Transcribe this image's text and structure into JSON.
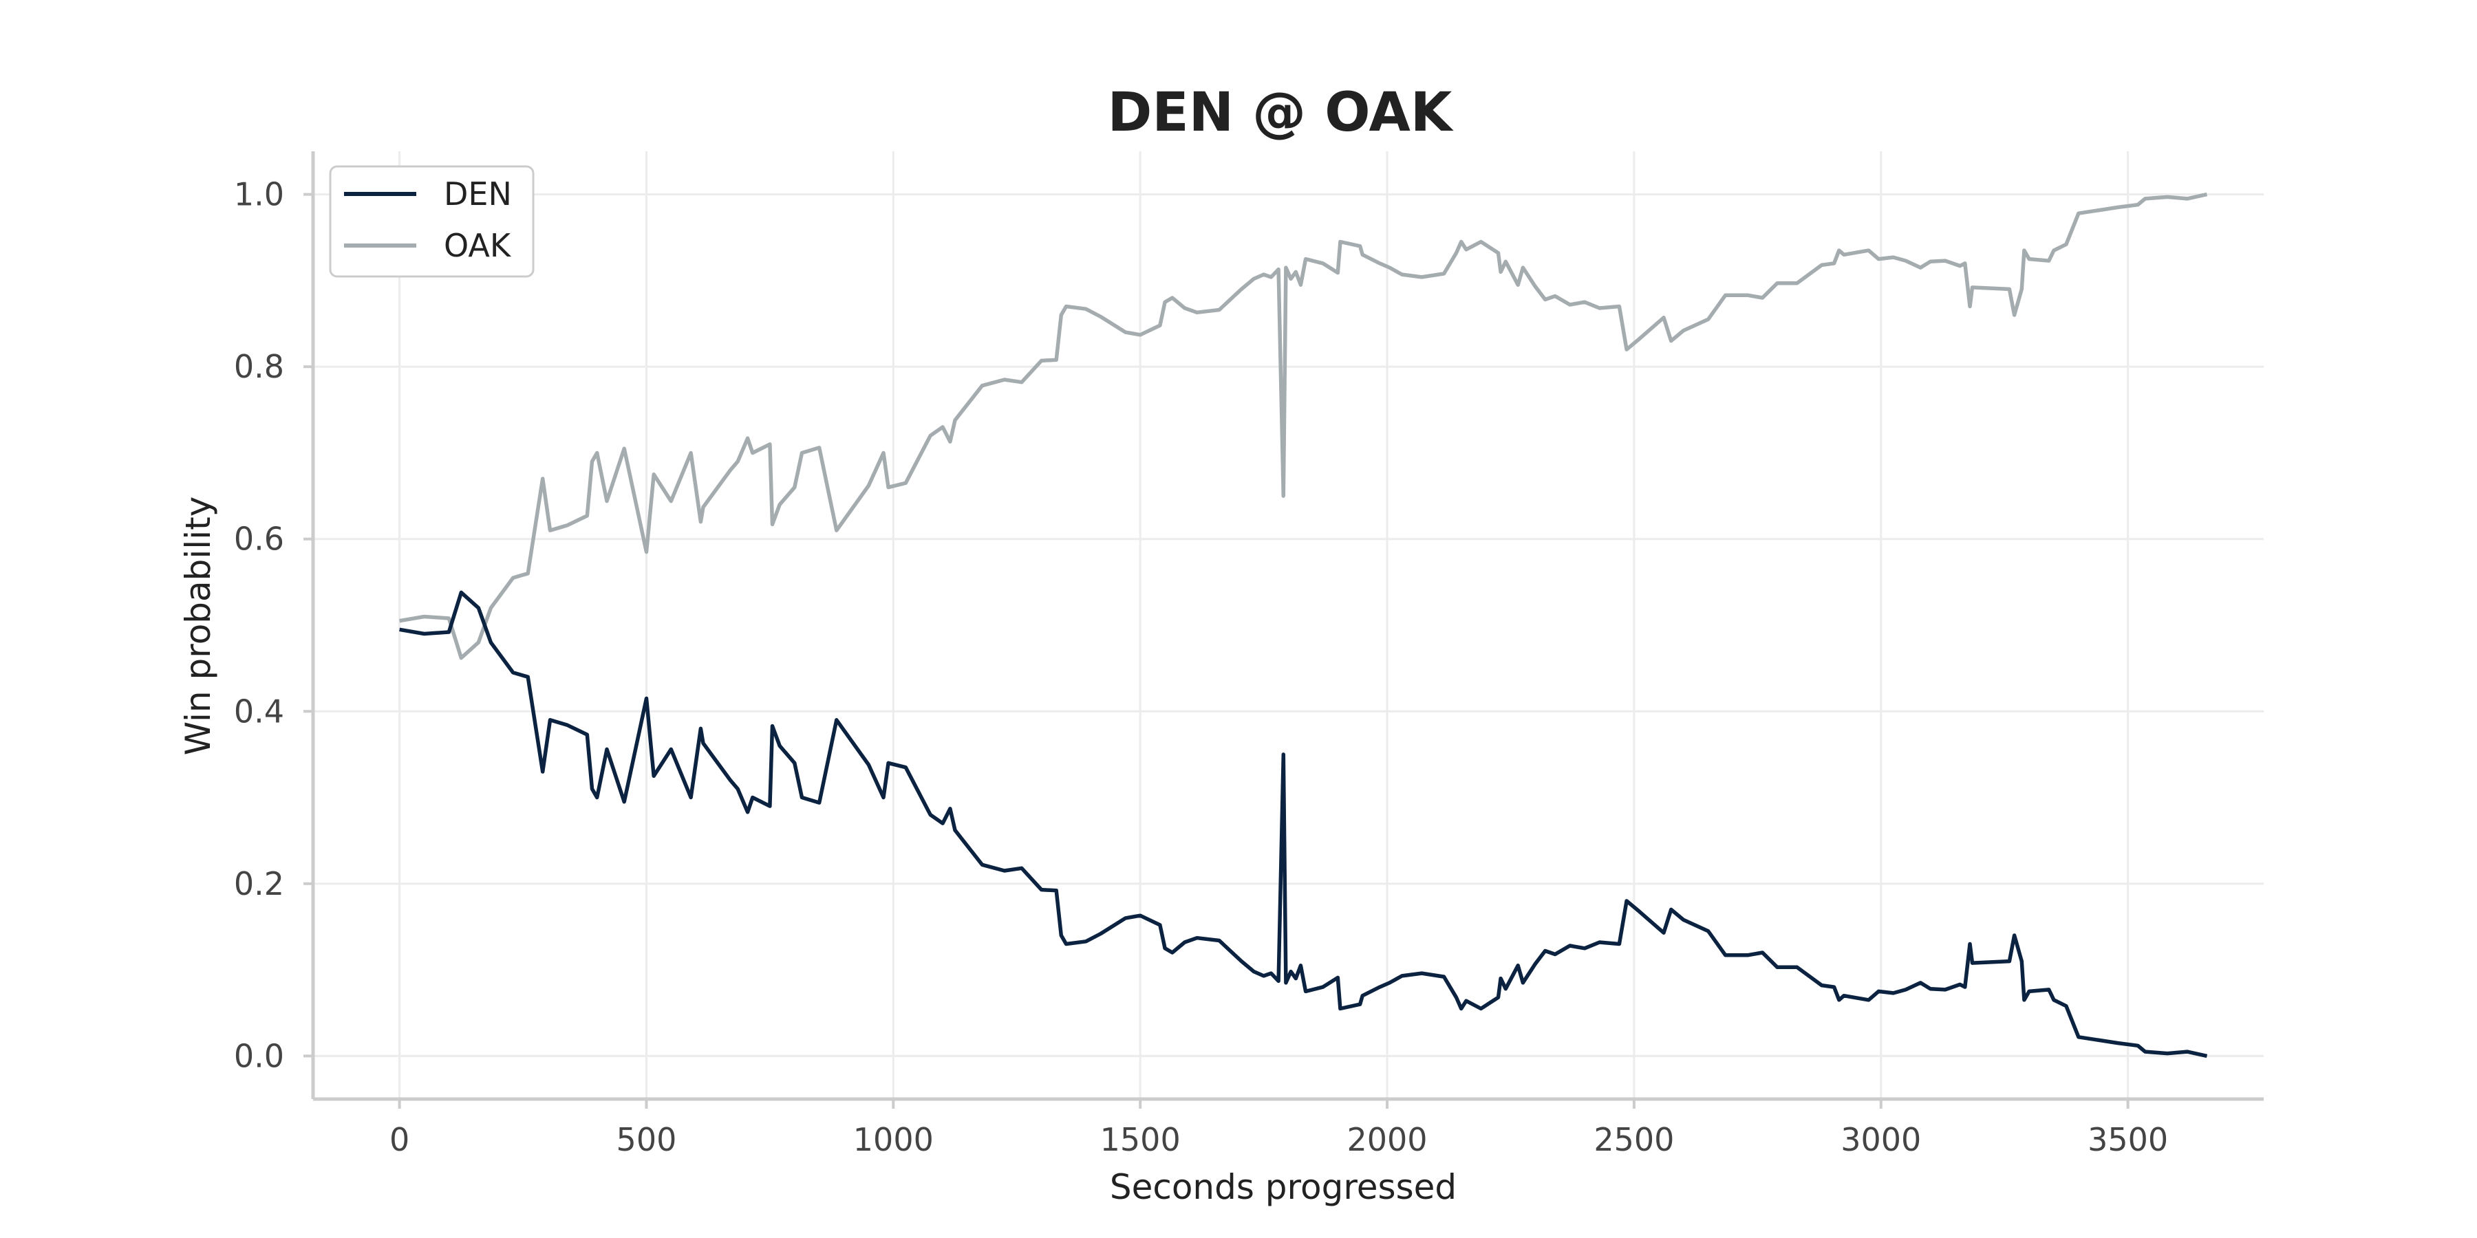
{
  "chart_data": {
    "type": "line",
    "title": "DEN @ OAK",
    "xlabel": "Seconds progressed",
    "ylabel": "Win probability",
    "xlim": [
      -175,
      3775
    ],
    "ylim": [
      -0.05,
      1.05
    ],
    "xticks": [
      0,
      500,
      1000,
      1500,
      2000,
      2500,
      3000,
      3500
    ],
    "yticks": [
      0.0,
      0.2,
      0.4,
      0.6,
      0.8,
      1.0
    ],
    "xtick_labels": [
      "0",
      "500",
      "1000",
      "1500",
      "2000",
      "2500",
      "3000",
      "3500"
    ],
    "ytick_labels": [
      "0.0",
      "0.2",
      "0.4",
      "0.6",
      "0.8",
      "1.0"
    ],
    "grid": true,
    "legend_position": "top-left",
    "colors": {
      "DEN": "#0b2341",
      "OAK": "#a5acaf"
    },
    "series": [
      {
        "name": "DEN",
        "color": "#0b2341",
        "points": [
          [
            0,
            0.495
          ],
          [
            50,
            0.49
          ],
          [
            100,
            0.492
          ],
          [
            125,
            0.538
          ],
          [
            160,
            0.52
          ],
          [
            185,
            0.48
          ],
          [
            230,
            0.445
          ],
          [
            260,
            0.44
          ],
          [
            290,
            0.33
          ],
          [
            305,
            0.39
          ],
          [
            340,
            0.384
          ],
          [
            380,
            0.373
          ],
          [
            390,
            0.31
          ],
          [
            400,
            0.3
          ],
          [
            420,
            0.356
          ],
          [
            455,
            0.295
          ],
          [
            500,
            0.415
          ],
          [
            515,
            0.325
          ],
          [
            550,
            0.356
          ],
          [
            590,
            0.3
          ],
          [
            610,
            0.38
          ],
          [
            615,
            0.363
          ],
          [
            670,
            0.32
          ],
          [
            685,
            0.31
          ],
          [
            705,
            0.283
          ],
          [
            715,
            0.3
          ],
          [
            750,
            0.29
          ],
          [
            755,
            0.383
          ],
          [
            770,
            0.36
          ],
          [
            800,
            0.34
          ],
          [
            815,
            0.3
          ],
          [
            850,
            0.294
          ],
          [
            885,
            0.39
          ],
          [
            950,
            0.338
          ],
          [
            980,
            0.3
          ],
          [
            990,
            0.34
          ],
          [
            1025,
            0.335
          ],
          [
            1075,
            0.28
          ],
          [
            1100,
            0.27
          ],
          [
            1115,
            0.287
          ],
          [
            1125,
            0.262
          ],
          [
            1180,
            0.222
          ],
          [
            1225,
            0.215
          ],
          [
            1260,
            0.218
          ],
          [
            1300,
            0.193
          ],
          [
            1330,
            0.192
          ],
          [
            1340,
            0.14
          ],
          [
            1350,
            0.13
          ],
          [
            1390,
            0.133
          ],
          [
            1420,
            0.142
          ],
          [
            1470,
            0.16
          ],
          [
            1500,
            0.163
          ],
          [
            1540,
            0.152
          ],
          [
            1550,
            0.125
          ],
          [
            1565,
            0.12
          ],
          [
            1590,
            0.132
          ],
          [
            1615,
            0.137
          ],
          [
            1660,
            0.134
          ],
          [
            1705,
            0.11
          ],
          [
            1730,
            0.098
          ],
          [
            1750,
            0.093
          ],
          [
            1765,
            0.096
          ],
          [
            1780,
            0.087
          ],
          [
            1790,
            0.35
          ],
          [
            1795,
            0.085
          ],
          [
            1805,
            0.098
          ],
          [
            1815,
            0.09
          ],
          [
            1825,
            0.105
          ],
          [
            1835,
            0.075
          ],
          [
            1870,
            0.08
          ],
          [
            1900,
            0.091
          ],
          [
            1905,
            0.055
          ],
          [
            1945,
            0.06
          ],
          [
            1950,
            0.07
          ],
          [
            1985,
            0.08
          ],
          [
            2005,
            0.085
          ],
          [
            2030,
            0.093
          ],
          [
            2070,
            0.096
          ],
          [
            2115,
            0.092
          ],
          [
            2140,
            0.068
          ],
          [
            2150,
            0.055
          ],
          [
            2160,
            0.064
          ],
          [
            2190,
            0.055
          ],
          [
            2225,
            0.068
          ],
          [
            2230,
            0.09
          ],
          [
            2240,
            0.078
          ],
          [
            2265,
            0.105
          ],
          [
            2275,
            0.085
          ],
          [
            2300,
            0.107
          ],
          [
            2320,
            0.122
          ],
          [
            2340,
            0.118
          ],
          [
            2370,
            0.128
          ],
          [
            2400,
            0.125
          ],
          [
            2430,
            0.132
          ],
          [
            2470,
            0.13
          ],
          [
            2485,
            0.18
          ],
          [
            2510,
            0.168
          ],
          [
            2560,
            0.143
          ],
          [
            2575,
            0.17
          ],
          [
            2600,
            0.158
          ],
          [
            2650,
            0.145
          ],
          [
            2685,
            0.117
          ],
          [
            2730,
            0.117
          ],
          [
            2760,
            0.12
          ],
          [
            2790,
            0.103
          ],
          [
            2830,
            0.103
          ],
          [
            2880,
            0.082
          ],
          [
            2905,
            0.08
          ],
          [
            2915,
            0.065
          ],
          [
            2925,
            0.07
          ],
          [
            2975,
            0.065
          ],
          [
            2995,
            0.075
          ],
          [
            3025,
            0.073
          ],
          [
            3050,
            0.077
          ],
          [
            3080,
            0.085
          ],
          [
            3100,
            0.078
          ],
          [
            3130,
            0.077
          ],
          [
            3160,
            0.083
          ],
          [
            3170,
            0.08
          ],
          [
            3180,
            0.13
          ],
          [
            3185,
            0.108
          ],
          [
            3260,
            0.11
          ],
          [
            3270,
            0.14
          ],
          [
            3285,
            0.11
          ],
          [
            3290,
            0.065
          ],
          [
            3300,
            0.075
          ],
          [
            3340,
            0.077
          ],
          [
            3350,
            0.065
          ],
          [
            3375,
            0.058
          ],
          [
            3400,
            0.022
          ],
          [
            3480,
            0.015
          ],
          [
            3520,
            0.012
          ],
          [
            3535,
            0.005
          ],
          [
            3580,
            0.003
          ],
          [
            3620,
            0.005
          ],
          [
            3660,
            0.0
          ]
        ]
      },
      {
        "name": "OAK",
        "color": "#a5acaf",
        "points": [
          [
            0,
            0.505
          ],
          [
            50,
            0.51
          ],
          [
            100,
            0.508
          ],
          [
            125,
            0.462
          ],
          [
            160,
            0.48
          ],
          [
            185,
            0.52
          ],
          [
            230,
            0.555
          ],
          [
            260,
            0.56
          ],
          [
            290,
            0.67
          ],
          [
            305,
            0.61
          ],
          [
            340,
            0.616
          ],
          [
            380,
            0.627
          ],
          [
            390,
            0.69
          ],
          [
            400,
            0.7
          ],
          [
            420,
            0.644
          ],
          [
            455,
            0.705
          ],
          [
            500,
            0.585
          ],
          [
            515,
            0.675
          ],
          [
            550,
            0.644
          ],
          [
            590,
            0.7
          ],
          [
            610,
            0.62
          ],
          [
            615,
            0.637
          ],
          [
            670,
            0.68
          ],
          [
            685,
            0.69
          ],
          [
            705,
            0.717
          ],
          [
            715,
            0.7
          ],
          [
            750,
            0.71
          ],
          [
            755,
            0.617
          ],
          [
            770,
            0.64
          ],
          [
            800,
            0.66
          ],
          [
            815,
            0.7
          ],
          [
            850,
            0.706
          ],
          [
            885,
            0.61
          ],
          [
            950,
            0.662
          ],
          [
            980,
            0.7
          ],
          [
            990,
            0.66
          ],
          [
            1025,
            0.665
          ],
          [
            1075,
            0.72
          ],
          [
            1100,
            0.73
          ],
          [
            1115,
            0.713
          ],
          [
            1125,
            0.738
          ],
          [
            1180,
            0.778
          ],
          [
            1225,
            0.785
          ],
          [
            1260,
            0.782
          ],
          [
            1300,
            0.807
          ],
          [
            1330,
            0.808
          ],
          [
            1340,
            0.86
          ],
          [
            1350,
            0.87
          ],
          [
            1390,
            0.867
          ],
          [
            1420,
            0.858
          ],
          [
            1470,
            0.84
          ],
          [
            1500,
            0.837
          ],
          [
            1540,
            0.848
          ],
          [
            1550,
            0.875
          ],
          [
            1565,
            0.88
          ],
          [
            1590,
            0.868
          ],
          [
            1615,
            0.863
          ],
          [
            1660,
            0.866
          ],
          [
            1705,
            0.89
          ],
          [
            1730,
            0.902
          ],
          [
            1750,
            0.907
          ],
          [
            1765,
            0.904
          ],
          [
            1780,
            0.913
          ],
          [
            1790,
            0.65
          ],
          [
            1795,
            0.915
          ],
          [
            1805,
            0.902
          ],
          [
            1815,
            0.91
          ],
          [
            1825,
            0.895
          ],
          [
            1835,
            0.925
          ],
          [
            1870,
            0.92
          ],
          [
            1900,
            0.909
          ],
          [
            1905,
            0.945
          ],
          [
            1945,
            0.94
          ],
          [
            1950,
            0.93
          ],
          [
            1985,
            0.92
          ],
          [
            2005,
            0.915
          ],
          [
            2030,
            0.907
          ],
          [
            2070,
            0.904
          ],
          [
            2115,
            0.908
          ],
          [
            2140,
            0.932
          ],
          [
            2150,
            0.945
          ],
          [
            2160,
            0.936
          ],
          [
            2190,
            0.945
          ],
          [
            2225,
            0.932
          ],
          [
            2230,
            0.91
          ],
          [
            2240,
            0.922
          ],
          [
            2265,
            0.895
          ],
          [
            2275,
            0.915
          ],
          [
            2300,
            0.893
          ],
          [
            2320,
            0.878
          ],
          [
            2340,
            0.882
          ],
          [
            2370,
            0.872
          ],
          [
            2400,
            0.875
          ],
          [
            2430,
            0.868
          ],
          [
            2470,
            0.87
          ],
          [
            2485,
            0.82
          ],
          [
            2510,
            0.832
          ],
          [
            2560,
            0.857
          ],
          [
            2575,
            0.83
          ],
          [
            2600,
            0.842
          ],
          [
            2650,
            0.855
          ],
          [
            2685,
            0.883
          ],
          [
            2730,
            0.883
          ],
          [
            2760,
            0.88
          ],
          [
            2790,
            0.897
          ],
          [
            2830,
            0.897
          ],
          [
            2880,
            0.918
          ],
          [
            2905,
            0.92
          ],
          [
            2915,
            0.935
          ],
          [
            2925,
            0.93
          ],
          [
            2975,
            0.935
          ],
          [
            2995,
            0.925
          ],
          [
            3025,
            0.927
          ],
          [
            3050,
            0.923
          ],
          [
            3080,
            0.915
          ],
          [
            3100,
            0.922
          ],
          [
            3130,
            0.923
          ],
          [
            3160,
            0.917
          ],
          [
            3170,
            0.92
          ],
          [
            3180,
            0.87
          ],
          [
            3185,
            0.892
          ],
          [
            3260,
            0.89
          ],
          [
            3270,
            0.86
          ],
          [
            3285,
            0.89
          ],
          [
            3290,
            0.935
          ],
          [
            3300,
            0.925
          ],
          [
            3340,
            0.923
          ],
          [
            3350,
            0.935
          ],
          [
            3375,
            0.942
          ],
          [
            3400,
            0.978
          ],
          [
            3480,
            0.985
          ],
          [
            3520,
            0.988
          ],
          [
            3535,
            0.995
          ],
          [
            3580,
            0.997
          ],
          [
            3620,
            0.995
          ],
          [
            3660,
            1.0
          ]
        ]
      }
    ]
  }
}
